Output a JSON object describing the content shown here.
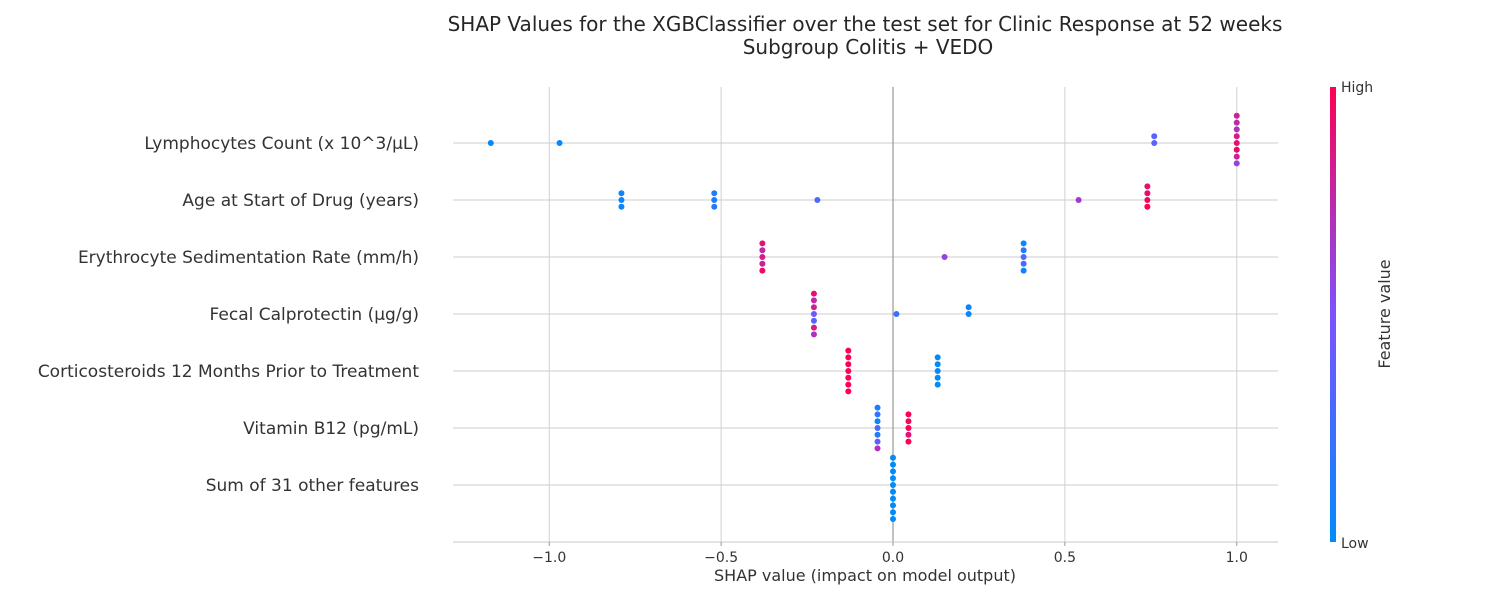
{
  "chart_data": {
    "type": "scatter",
    "subtype": "shap-beeswarm",
    "title_line1": "SHAP Values for the XGBClassifier over the test set for Clinic Response at 52 weeks",
    "title_line2": "Subgroup Colitis + VEDO",
    "xlabel": "SHAP value (impact on model output)",
    "xlim": [
      -1.28,
      1.12
    ],
    "xticks": [
      -1.0,
      -0.5,
      0.0,
      0.5,
      1.0
    ],
    "xtick_labels": [
      "−1.0",
      "−0.5",
      "0.0",
      "0.5",
      "1.0"
    ],
    "grid": true,
    "colorbar": {
      "title": "Feature value",
      "high_label": "High",
      "low_label": "Low",
      "low_color": "#008bfb",
      "mid_color": "#7c52ff",
      "high_color": "#ff0052"
    },
    "features": [
      {
        "name": "Lymphocytes Count (x 10^3/μL)",
        "points": [
          {
            "shap": -1.17,
            "value": 0.0,
            "offset": 0
          },
          {
            "shap": -0.97,
            "value": 0.02,
            "offset": 0
          },
          {
            "shap": 0.76,
            "value": 0.35,
            "offset": -1
          },
          {
            "shap": 0.76,
            "value": 0.38,
            "offset": 0
          },
          {
            "shap": 1.0,
            "value": 0.8,
            "offset": -4
          },
          {
            "shap": 1.0,
            "value": 0.75,
            "offset": -3
          },
          {
            "shap": 1.0,
            "value": 0.7,
            "offset": -2
          },
          {
            "shap": 1.0,
            "value": 0.85,
            "offset": -1
          },
          {
            "shap": 1.0,
            "value": 0.9,
            "offset": 0
          },
          {
            "shap": 1.0,
            "value": 0.95,
            "offset": 1
          },
          {
            "shap": 1.0,
            "value": 0.8,
            "offset": 2
          },
          {
            "shap": 1.0,
            "value": 0.6,
            "offset": 3
          }
        ]
      },
      {
        "name": "Age at Start of Drug (years)",
        "points": [
          {
            "shap": -0.79,
            "value": 0.05,
            "offset": -1
          },
          {
            "shap": -0.79,
            "value": 0.05,
            "offset": 0
          },
          {
            "shap": -0.79,
            "value": 0.05,
            "offset": 1
          },
          {
            "shap": -0.52,
            "value": 0.12,
            "offset": -1
          },
          {
            "shap": -0.52,
            "value": 0.12,
            "offset": 0
          },
          {
            "shap": -0.52,
            "value": 0.15,
            "offset": 1
          },
          {
            "shap": -0.22,
            "value": 0.3,
            "offset": 0
          },
          {
            "shap": 0.54,
            "value": 0.65,
            "offset": 0
          },
          {
            "shap": 0.74,
            "value": 0.9,
            "offset": -2
          },
          {
            "shap": 0.74,
            "value": 0.95,
            "offset": -1
          },
          {
            "shap": 0.74,
            "value": 0.95,
            "offset": 0
          },
          {
            "shap": 0.74,
            "value": 1.0,
            "offset": 1
          }
        ]
      },
      {
        "name": "Erythrocyte Sedimentation Rate (mm/h)",
        "points": [
          {
            "shap": -0.38,
            "value": 0.9,
            "offset": -2
          },
          {
            "shap": -0.38,
            "value": 0.75,
            "offset": -1
          },
          {
            "shap": -0.38,
            "value": 0.85,
            "offset": 0
          },
          {
            "shap": -0.38,
            "value": 0.8,
            "offset": 1
          },
          {
            "shap": -0.38,
            "value": 0.95,
            "offset": 2
          },
          {
            "shap": 0.15,
            "value": 0.6,
            "offset": 0
          },
          {
            "shap": 0.38,
            "value": 0.02,
            "offset": -2
          },
          {
            "shap": 0.38,
            "value": 0.15,
            "offset": -1
          },
          {
            "shap": 0.38,
            "value": 0.3,
            "offset": 0
          },
          {
            "shap": 0.38,
            "value": 0.25,
            "offset": 1
          },
          {
            "shap": 0.38,
            "value": 0.05,
            "offset": 2
          }
        ]
      },
      {
        "name": "Fecal Calprotectin (μg/g)",
        "points": [
          {
            "shap": -0.23,
            "value": 0.9,
            "offset": -3
          },
          {
            "shap": -0.23,
            "value": 0.75,
            "offset": -2
          },
          {
            "shap": -0.23,
            "value": 0.8,
            "offset": -1
          },
          {
            "shap": -0.23,
            "value": 0.45,
            "offset": 0
          },
          {
            "shap": -0.23,
            "value": 0.35,
            "offset": 1
          },
          {
            "shap": -0.23,
            "value": 0.85,
            "offset": 2
          },
          {
            "shap": -0.23,
            "value": 0.7,
            "offset": 3
          },
          {
            "shap": 0.01,
            "value": 0.22,
            "offset": 0
          },
          {
            "shap": 0.22,
            "value": 0.05,
            "offset": -1
          },
          {
            "shap": 0.22,
            "value": 0.05,
            "offset": 0
          }
        ]
      },
      {
        "name": "Corticosteroids 12 Months Prior to Treatment",
        "points": [
          {
            "shap": -0.13,
            "value": 1.0,
            "offset": -3
          },
          {
            "shap": -0.13,
            "value": 1.0,
            "offset": -2
          },
          {
            "shap": -0.13,
            "value": 1.0,
            "offset": -1
          },
          {
            "shap": -0.13,
            "value": 1.0,
            "offset": 0
          },
          {
            "shap": -0.13,
            "value": 1.0,
            "offset": 1
          },
          {
            "shap": -0.13,
            "value": 1.0,
            "offset": 2
          },
          {
            "shap": -0.13,
            "value": 1.0,
            "offset": 3
          },
          {
            "shap": 0.13,
            "value": 0.0,
            "offset": -2
          },
          {
            "shap": 0.13,
            "value": 0.0,
            "offset": -1
          },
          {
            "shap": 0.13,
            "value": 0.0,
            "offset": 0
          },
          {
            "shap": 0.13,
            "value": 0.0,
            "offset": 1
          },
          {
            "shap": 0.13,
            "value": 0.0,
            "offset": 2
          }
        ]
      },
      {
        "name": "Vitamin B12 (pg/mL)",
        "points": [
          {
            "shap": -0.045,
            "value": 0.1,
            "offset": -3
          },
          {
            "shap": -0.045,
            "value": 0.2,
            "offset": -2
          },
          {
            "shap": -0.045,
            "value": 0.05,
            "offset": -1
          },
          {
            "shap": -0.045,
            "value": 0.3,
            "offset": 0
          },
          {
            "shap": -0.045,
            "value": 0.15,
            "offset": 1
          },
          {
            "shap": -0.045,
            "value": 0.4,
            "offset": 2
          },
          {
            "shap": -0.045,
            "value": 0.7,
            "offset": 3
          },
          {
            "shap": 0.045,
            "value": 1.0,
            "offset": -2
          },
          {
            "shap": 0.045,
            "value": 0.95,
            "offset": -1
          },
          {
            "shap": 0.045,
            "value": 1.0,
            "offset": 0
          },
          {
            "shap": 0.045,
            "value": 0.9,
            "offset": 1
          },
          {
            "shap": 0.045,
            "value": 1.0,
            "offset": 2
          }
        ]
      },
      {
        "name": "Sum of 31 other features",
        "points": [
          {
            "shap": 0.0,
            "value": 0.0,
            "offset": -4
          },
          {
            "shap": 0.0,
            "value": 0.0,
            "offset": -3
          },
          {
            "shap": 0.0,
            "value": 0.0,
            "offset": -2
          },
          {
            "shap": 0.0,
            "value": 0.0,
            "offset": -1
          },
          {
            "shap": 0.0,
            "value": 0.0,
            "offset": 0
          },
          {
            "shap": 0.0,
            "value": 0.0,
            "offset": 1
          },
          {
            "shap": 0.0,
            "value": 0.0,
            "offset": 2
          },
          {
            "shap": 0.0,
            "value": 0.0,
            "offset": 3
          },
          {
            "shap": 0.0,
            "value": 0.0,
            "offset": 4
          },
          {
            "shap": 0.0,
            "value": 0.0,
            "offset": 5
          }
        ]
      }
    ]
  }
}
